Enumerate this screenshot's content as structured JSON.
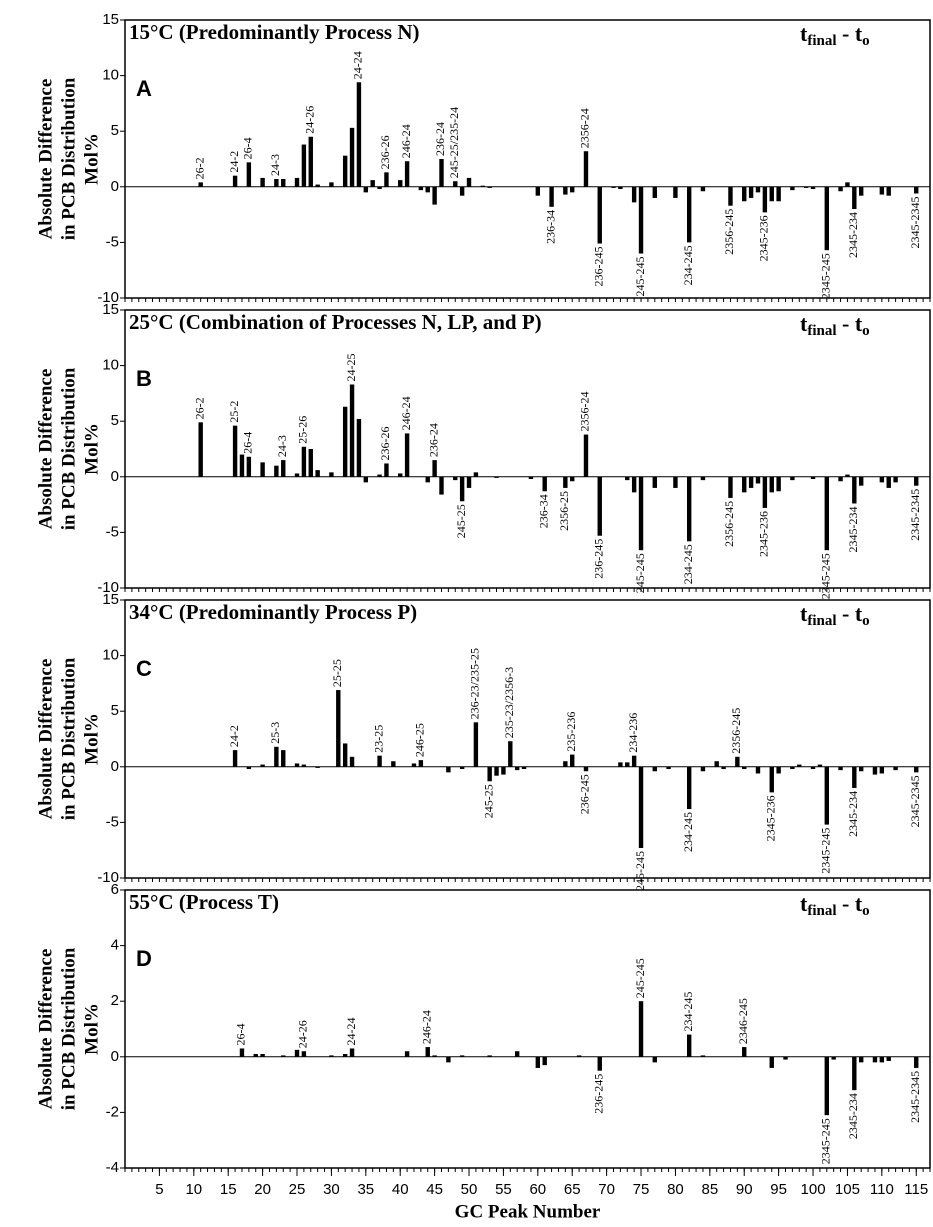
{
  "chart_data": [
    {
      "type": "bar",
      "title": "15°C (Predominantly Process N)",
      "panel": "A",
      "corner_label": [
        {
          "text": "t"
        },
        {
          "text": "final",
          "sub": true
        },
        {
          "text": " - t"
        },
        {
          "text": "o",
          "sub": true
        }
      ],
      "ylabel": [
        "Absolute Difference",
        "in PCB Distribution",
        "Mol%"
      ],
      "xlim": [
        0,
        117
      ],
      "ylim": [
        -10,
        15
      ],
      "yticks": [
        15,
        10,
        5,
        0,
        -5,
        -10
      ],
      "color": "#000000",
      "x": [
        11,
        16,
        18,
        20,
        22,
        23,
        25,
        26,
        27,
        28,
        30,
        32,
        33,
        34,
        35,
        36,
        37,
        38,
        40,
        41,
        43,
        44,
        45,
        46,
        48,
        49,
        50,
        52,
        53,
        60,
        62,
        64,
        65,
        67,
        69,
        71,
        72,
        74,
        75,
        77,
        80,
        82,
        84,
        88,
        90,
        91,
        92,
        93,
        94,
        95,
        97,
        99,
        100,
        102,
        104,
        105,
        106,
        107,
        110,
        111,
        115
      ],
      "values": [
        0.4,
        1.0,
        2.2,
        0.8,
        0.7,
        0.7,
        0.8,
        3.8,
        4.5,
        0.2,
        0.4,
        2.8,
        5.3,
        9.4,
        -0.5,
        0.6,
        -0.2,
        1.3,
        0.6,
        2.3,
        -0.3,
        -0.5,
        -1.6,
        2.5,
        0.5,
        -0.8,
        0.8,
        0.1,
        -0.1,
        -0.8,
        -1.8,
        -0.7,
        -0.5,
        3.2,
        -5.1,
        -0.1,
        -0.2,
        -1.4,
        -6.0,
        -1.0,
        -1.0,
        -5.0,
        -0.4,
        -1.7,
        -1.3,
        -1.0,
        -0.5,
        -2.3,
        -1.3,
        -1.3,
        -0.3,
        -0.1,
        -0.2,
        -5.7,
        -0.4,
        0.4,
        -2.0,
        -0.8,
        -0.7,
        -0.8,
        -0.6
      ],
      "labels": [
        "26-2",
        "24-2",
        "26-4",
        null,
        "24-3",
        null,
        null,
        null,
        "24-26",
        null,
        null,
        null,
        null,
        "24-24",
        null,
        null,
        null,
        "236-26",
        null,
        "246-24",
        null,
        null,
        null,
        "236-24",
        "245-25/235-24",
        null,
        null,
        null,
        null,
        null,
        "236-34",
        null,
        null,
        "2356-24",
        "236-245",
        null,
        null,
        null,
        "245-245",
        null,
        null,
        "234-245",
        null,
        "2356-245",
        null,
        null,
        null,
        "2345-236",
        null,
        null,
        null,
        null,
        null,
        "2345-245",
        null,
        null,
        "2345-234",
        null,
        null,
        null,
        "2345-2345"
      ]
    },
    {
      "type": "bar",
      "title": "25°C (Combination of Processes N, LP, and P)",
      "panel": "B",
      "corner_label": [
        {
          "text": "t"
        },
        {
          "text": "final",
          "sub": true
        },
        {
          "text": " - t"
        },
        {
          "text": "o",
          "sub": true
        }
      ],
      "ylabel": [
        "Absolute Difference",
        "in PCB Distribution",
        "Mol%"
      ],
      "xlim": [
        0,
        117
      ],
      "ylim": [
        -10,
        15
      ],
      "yticks": [
        15,
        10,
        5,
        0,
        -5,
        -10
      ],
      "color": "#000000",
      "x": [
        11,
        16,
        17,
        18,
        20,
        22,
        23,
        25,
        26,
        27,
        28,
        30,
        32,
        33,
        34,
        35,
        37,
        38,
        40,
        41,
        44,
        45,
        46,
        48,
        49,
        50,
        51,
        54,
        59,
        61,
        64,
        65,
        67,
        69,
        73,
        74,
        75,
        77,
        80,
        82,
        84,
        88,
        90,
        91,
        92,
        93,
        94,
        95,
        97,
        100,
        102,
        104,
        105,
        106,
        107,
        110,
        111,
        112,
        115
      ],
      "values": [
        4.9,
        4.6,
        2.0,
        1.8,
        1.3,
        1.0,
        1.5,
        0.3,
        2.7,
        2.5,
        0.6,
        0.4,
        6.3,
        8.3,
        5.2,
        -0.5,
        0.2,
        1.2,
        0.3,
        3.9,
        -0.5,
        1.5,
        -1.6,
        -0.3,
        -2.2,
        -1.0,
        0.4,
        -0.1,
        -0.2,
        -1.3,
        -1.0,
        -0.4,
        3.8,
        -5.3,
        -0.3,
        -1.4,
        -6.6,
        -1.0,
        -1.0,
        -5.8,
        -0.3,
        -1.9,
        -1.4,
        -1.0,
        -0.6,
        -2.8,
        -1.4,
        -1.3,
        -0.3,
        -0.2,
        -6.6,
        -0.4,
        0.2,
        -2.4,
        -0.8,
        -0.5,
        -1.0,
        -0.5,
        -0.8
      ],
      "labels": [
        "26-2",
        "25-2",
        null,
        "26-4",
        null,
        null,
        "24-3",
        null,
        "25-26",
        null,
        null,
        null,
        null,
        "24-25",
        null,
        null,
        null,
        "236-26",
        null,
        "246-24",
        null,
        "236-24",
        null,
        null,
        "245-25",
        null,
        null,
        null,
        null,
        "236-34",
        "2356-25",
        null,
        "2356-24",
        "236-245",
        null,
        null,
        "245-245",
        null,
        null,
        "234-245",
        null,
        "2356-245",
        null,
        null,
        null,
        "2345-236",
        null,
        null,
        null,
        null,
        "2345-245",
        null,
        null,
        "2345-234",
        null,
        null,
        null,
        null,
        "2345-2345"
      ]
    },
    {
      "type": "bar",
      "title": "34°C (Predominantly Process P)",
      "panel": "C",
      "corner_label": [
        {
          "text": "t"
        },
        {
          "text": "final",
          "sub": true
        },
        {
          "text": " - t"
        },
        {
          "text": "o",
          "sub": true
        }
      ],
      "ylabel": [
        "Absolute Difference",
        "in PCB Distribution",
        "Mol%"
      ],
      "xlim": [
        0,
        117
      ],
      "ylim": [
        -10,
        15
      ],
      "yticks": [
        15,
        10,
        5,
        0,
        -5,
        -10
      ],
      "color": "#000000",
      "x": [
        16,
        18,
        20,
        22,
        23,
        25,
        26,
        28,
        31,
        32,
        33,
        37,
        39,
        42,
        43,
        47,
        49,
        51,
        53,
        54,
        55,
        56,
        57,
        58,
        64,
        65,
        67,
        72,
        73,
        74,
        75,
        77,
        79,
        82,
        84,
        86,
        87,
        89,
        90,
        92,
        94,
        95,
        97,
        98,
        100,
        101,
        102,
        104,
        106,
        107,
        109,
        110,
        112,
        115
      ],
      "values": [
        1.5,
        -0.2,
        0.2,
        1.8,
        1.5,
        0.3,
        0.2,
        -0.1,
        6.9,
        2.1,
        0.9,
        1.0,
        0.5,
        0.3,
        0.6,
        -0.5,
        -0.2,
        4.0,
        -1.3,
        -0.8,
        -0.7,
        2.3,
        -0.3,
        -0.2,
        0.5,
        1.1,
        -0.4,
        0.4,
        0.4,
        1.0,
        -7.3,
        -0.4,
        -0.2,
        -3.8,
        -0.4,
        0.5,
        -0.2,
        0.9,
        -0.2,
        -0.6,
        -2.3,
        -0.6,
        -0.2,
        0.2,
        -0.2,
        0.2,
        -5.2,
        -0.3,
        -1.9,
        -0.4,
        -0.7,
        -0.6,
        -0.3,
        -0.5
      ],
      "labels": [
        "24-2",
        null,
        null,
        "25-3",
        null,
        null,
        null,
        null,
        "25-25",
        null,
        null,
        "23-25",
        null,
        null,
        "246-25",
        null,
        null,
        "236-23/235-25",
        "245-25",
        null,
        null,
        "235-23/2356-3",
        null,
        null,
        null,
        "235-236",
        "236-245",
        null,
        null,
        "234-236",
        "245-245",
        null,
        null,
        "234-245",
        null,
        null,
        null,
        "2356-245",
        null,
        null,
        "2345-236",
        null,
        null,
        null,
        null,
        null,
        "2345-245",
        null,
        "2345-234",
        null,
        null,
        null,
        null,
        "2345-2345"
      ]
    },
    {
      "type": "bar",
      "title": "55°C (Process T)",
      "panel": "D",
      "corner_label": [
        {
          "text": "t"
        },
        {
          "text": "final",
          "sub": true
        },
        {
          "text": " - t"
        },
        {
          "text": "o",
          "sub": true
        }
      ],
      "ylabel": [
        "Absolute Difference",
        "in PCB Distribution",
        "Mol%"
      ],
      "xlabel": "GC Peak Number",
      "xlim": [
        0,
        117
      ],
      "ylim": [
        -4,
        6
      ],
      "yticks": [
        6,
        4,
        2,
        0,
        -2,
        -4
      ],
      "color": "#000000",
      "xticks": [
        5,
        10,
        15,
        20,
        25,
        30,
        35,
        40,
        45,
        50,
        55,
        60,
        65,
        70,
        75,
        80,
        85,
        90,
        95,
        100,
        105,
        110,
        115
      ],
      "x": [
        17,
        19,
        20,
        23,
        25,
        26,
        30,
        32,
        33,
        41,
        44,
        45,
        47,
        49,
        53,
        57,
        60,
        61,
        66,
        69,
        75,
        77,
        82,
        84,
        90,
        94,
        96,
        102,
        103,
        106,
        107,
        109,
        110,
        111,
        115
      ],
      "values": [
        0.3,
        0.1,
        0.1,
        0.05,
        0.25,
        0.2,
        0.05,
        0.1,
        0.3,
        0.2,
        0.35,
        0.05,
        -0.2,
        0.05,
        0.05,
        0.2,
        -0.4,
        -0.3,
        0.05,
        -0.5,
        2.0,
        -0.2,
        0.8,
        0.05,
        0.35,
        -0.4,
        -0.1,
        -2.1,
        -0.1,
        -1.2,
        -0.2,
        -0.2,
        -0.2,
        -0.15,
        -0.4
      ],
      "labels": [
        "26-4",
        null,
        null,
        null,
        null,
        "24-26",
        null,
        null,
        "24-24",
        null,
        "246-24",
        null,
        null,
        null,
        null,
        null,
        null,
        null,
        null,
        "236-245",
        "245-245",
        null,
        "234-245",
        null,
        "2346-245",
        null,
        null,
        "2345-245",
        null,
        "2345-234",
        null,
        null,
        null,
        null,
        "2345-2345"
      ]
    }
  ]
}
